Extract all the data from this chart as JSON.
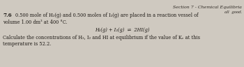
{
  "bg_color": "#cfc9c0",
  "top_right_text": "Section 7 - Chemical Equilibria",
  "top_right_subtext": "all  good.",
  "bold_number": "7.6",
  "line1_a": "0.500 mole of H₂(g) and 0.500 moles of I₂(g) are placed in a reaction vessel of",
  "line2": "volume 1.00 dm³ at 400 °C.",
  "equation": "H₂(g) + I₂(g)  ⇌  2HI(g)",
  "line3": "Calculate the concentrations of H₂, I₂ and HI at equilibrium if the value of Kₑ at this",
  "line4": "temperature is 52.2.",
  "text_color": "#1e1a16",
  "header_color": "#2a2520"
}
